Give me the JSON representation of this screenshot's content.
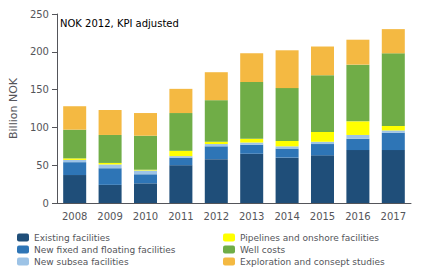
{
  "chart_data": {
    "type": "bar",
    "stacked": true,
    "categories": [
      "2008",
      "2009",
      "2010",
      "2011",
      "2012",
      "2013",
      "2014",
      "2015",
      "2016",
      "2017"
    ],
    "series": [
      {
        "name": "Existing facilities",
        "color": "#1f4e79",
        "values": [
          37,
          24,
          26,
          50,
          58,
          65,
          60,
          63,
          70,
          70
        ]
      },
      {
        "name": "New fixed and floating facilities",
        "color": "#2e75b6",
        "values": [
          17,
          22,
          12,
          10,
          17,
          12,
          12,
          15,
          15,
          23
        ]
      },
      {
        "name": "New subsea facilities",
        "color": "#9dc3e6",
        "values": [
          3,
          5,
          5,
          2,
          3,
          3,
          3,
          3,
          5,
          3
        ]
      },
      {
        "name": "Pipelines and onshore facilities",
        "color": "#ffff00",
        "values": [
          2,
          2,
          1,
          7,
          3,
          5,
          7,
          13,
          18,
          6
        ]
      },
      {
        "name": "Well costs",
        "color": "#70ad47",
        "values": [
          38,
          37,
          45,
          50,
          55,
          75,
          70,
          75,
          75,
          96
        ]
      },
      {
        "name": "Exploration and consept studies",
        "color": "#f4b942",
        "values": [
          31,
          33,
          30,
          32,
          37,
          38,
          50,
          38,
          33,
          32
        ]
      }
    ],
    "ylabel": "Billion NOK",
    "annotation": "NOK 2012, KPI adjusted",
    "ylim": [
      0,
      250
    ],
    "yticks": [
      0,
      50,
      100,
      150,
      200,
      250
    ],
    "grid": false,
    "legend": "bottom"
  }
}
